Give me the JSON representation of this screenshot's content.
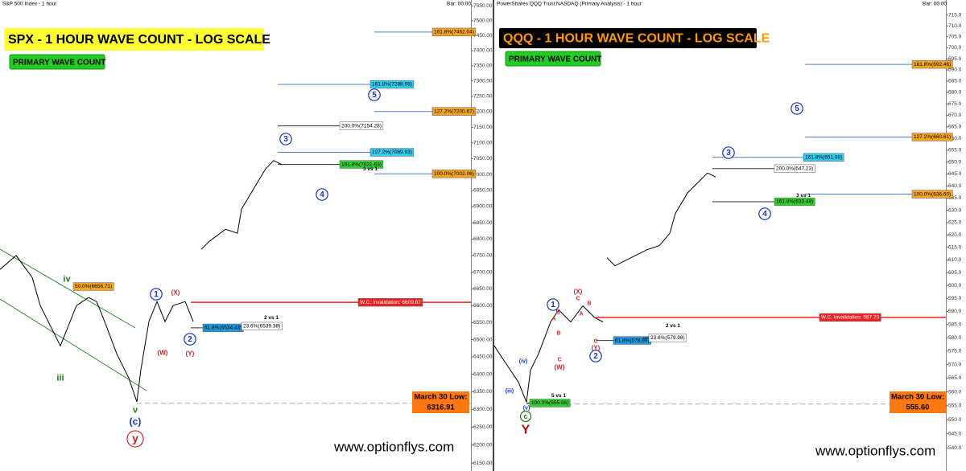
{
  "chart_data": [
    {
      "type": "line",
      "log_scale": true,
      "header": "S&P 500 Index - 1 hour",
      "bar_info": "Bar: 00:00",
      "title": "SPX - 1  HOUR WAVE COUNT - LOG SCALE",
      "subtitle": "PRIMARY WAVE COUNT",
      "watermark": "www.optionflys.com",
      "title_color": "#000000",
      "title_background": "#ffff33",
      "color": "#000000",
      "xlim": [
        0,
        585
      ],
      "ylim": [
        6128,
        7570
      ],
      "x": [
        0,
        20,
        40,
        50,
        75,
        95,
        110,
        120,
        130,
        145,
        160,
        170,
        175,
        185,
        195,
        205,
        215,
        230,
        240,
        245,
        250,
        260,
        280,
        295,
        300,
        315,
        330,
        340,
        350
      ],
      "values": [
        6708,
        6750,
        6684,
        6600,
        6482,
        6600,
        6624,
        6612,
        6553,
        6459,
        6389,
        6321,
        6413,
        6553,
        6612,
        6553,
        6600,
        6612,
        6553,
        null,
        6769,
        6793,
        6830,
        6818,
        6892,
        6955,
        7018,
        7044,
        7031
      ],
      "yticks": [
        {
          "value": 6150,
          "label": "6150.00"
        },
        {
          "value": 6200,
          "label": "6200.00"
        },
        {
          "value": 6250,
          "label": "6250.00"
        },
        {
          "value": 6300,
          "label": "6300.00"
        },
        {
          "value": 6350,
          "label": "6350.00"
        },
        {
          "value": 6400,
          "label": "6400.00"
        },
        {
          "value": 6450,
          "label": "6450.00"
        },
        {
          "value": 6500,
          "label": "6500.00"
        },
        {
          "value": 6550,
          "label": "6550.00"
        },
        {
          "value": 6600,
          "label": "6600.00"
        },
        {
          "value": 6650,
          "label": "6650.00"
        },
        {
          "value": 6700,
          "label": "6700.00"
        },
        {
          "value": 6750,
          "label": "6750.00"
        },
        {
          "value": 6800,
          "label": "6800.00"
        },
        {
          "value": 6850,
          "label": "6850.00"
        },
        {
          "value": 6900,
          "label": "6900.00"
        },
        {
          "value": 6950,
          "label": "6950.00"
        },
        {
          "value": 7000,
          "label": "7000.00"
        },
        {
          "value": 7050,
          "label": "7050.00"
        },
        {
          "value": 7100,
          "label": "7100.00"
        },
        {
          "value": 7150,
          "label": "7150.00"
        },
        {
          "value": 7200,
          "label": "7200.00"
        },
        {
          "value": 7250,
          "label": "7250.00"
        },
        {
          "value": 7300,
          "label": "7300.00"
        },
        {
          "value": 7350,
          "label": "7350.00"
        },
        {
          "value": 7400,
          "label": "7400.00"
        },
        {
          "value": 7450,
          "label": "7450.00"
        },
        {
          "value": 7500,
          "label": "7500.00"
        },
        {
          "value": 7550,
          "label": "7550.00"
        }
      ],
      "levels": [
        {
          "label": "161.8%(7462.04)",
          "value": 7462.04,
          "color": "#f5a623",
          "line_color": "#4a7fd4"
        },
        {
          "label": "161.8%(7288.68)",
          "value": 7288.68,
          "color": "#33ccee",
          "line_color": "#4a7fd4"
        },
        {
          "label": "127.2%(7200.67)",
          "value": 7200.67,
          "color": "#f5a623",
          "line_color": "#4a7fd4"
        },
        {
          "label": "200.0%(7154.28)",
          "value": 7154.28,
          "color": "#ffffff",
          "line_color": "#333333"
        },
        {
          "label": "127.2%(7069.93)",
          "value": 7069.93,
          "color": "#33ccee",
          "line_color": "#4a7fd4"
        },
        {
          "label": "161.8%(7031.63)",
          "value": 7031.63,
          "color": "#33cc33",
          "line_color": "#333333"
        },
        {
          "label": "100.0%(7002.06)",
          "value": 7002.06,
          "color": "#f5a623",
          "line_color": "#4a7fd4"
        },
        {
          "label": "W.C. Invalidation: 6609.67",
          "value": 6609.67,
          "color": "#ee2222",
          "line_color": "#ee2222"
        },
        {
          "label": "61.8%(6534.43)",
          "value": 6534.43,
          "color": "#2299dd",
          "line_color": "#333333"
        },
        {
          "label": "23.6%(6539.38)",
          "value": 6539.38,
          "color": "#ffffff",
          "line_color": "#333333"
        },
        {
          "label": "50.0%(6656.71)",
          "value": 6656.71,
          "color": "#f5a623",
          "line_color": "#333333"
        }
      ],
      "low": {
        "label": "March 30 Low:",
        "value": 6316.91
      },
      "annotations": [
        {
          "text": "iv",
          "color": "#1a7a1a"
        },
        {
          "text": "iii",
          "color": "#1a7a1a"
        },
        {
          "text": "v",
          "color": "#1a7a1a"
        },
        {
          "text": "(c)",
          "color": "#1133cc"
        },
        {
          "text": "y",
          "color": "#cc2222",
          "circled": true
        },
        {
          "text": "1",
          "color": "#1133cc",
          "circled": true
        },
        {
          "text": "(X)",
          "color": "#cc2222"
        },
        {
          "text": "(W)",
          "color": "#cc2222"
        },
        {
          "text": "(Y)",
          "color": "#cc2222"
        },
        {
          "text": "2",
          "color": "#1133cc",
          "circled": true
        },
        {
          "text": "3",
          "color": "#1133cc",
          "circled": true
        },
        {
          "text": "4",
          "color": "#1133cc",
          "circled": true
        },
        {
          "text": "5",
          "color": "#1133cc",
          "circled": true
        },
        {
          "text": "3 vs 1",
          "color": "#000000"
        },
        {
          "text": "2 vs 1",
          "color": "#000000"
        }
      ]
    },
    {
      "type": "line",
      "log_scale": true,
      "header": "PowerShares QQQ Trust:NASDAQ (Primary Analysis) - 1 hour",
      "bar_info": "Bar: 00:00",
      "title": "QQQ - 1 HOUR WAVE COUNT - LOG SCALE",
      "subtitle": "PRIMARY WAVE COUNT",
      "watermark": "www.optionflys.com",
      "title_color": "#ff9900",
      "title_background": "#000000",
      "color": "#000000",
      "xlim": [
        0,
        561
      ],
      "ylim": [
        532,
        722
      ],
      "x": [
        0,
        10,
        20,
        30,
        40,
        45,
        55,
        70,
        80,
        95,
        110,
        125,
        135,
        138,
        140,
        150,
        170,
        190,
        205,
        218,
        225,
        240,
        255,
        265,
        275
      ],
      "values": [
        577.0,
        572.4,
        568.0,
        563.6,
        556.3,
        568.0,
        574.0,
        586.0,
        590.6,
        586.0,
        592.1,
        587.6,
        586.0,
        null,
        610.9,
        607.7,
        610.9,
        614.1,
        615.7,
        620.6,
        628.7,
        637.1,
        642.1,
        645.4,
        643.7
      ],
      "yticks": [
        {
          "value": 540,
          "label": "540.0"
        },
        {
          "value": 545,
          "label": "545.0"
        },
        {
          "value": 550,
          "label": "550.0"
        },
        {
          "value": 555,
          "label": "555.0"
        },
        {
          "value": 560,
          "label": "560.0"
        },
        {
          "value": 565,
          "label": "565.0"
        },
        {
          "value": 570,
          "label": "570.0"
        },
        {
          "value": 575,
          "label": "575.0"
        },
        {
          "value": 580,
          "label": "580.0"
        },
        {
          "value": 585,
          "label": "585.0"
        },
        {
          "value": 590,
          "label": "590.0"
        },
        {
          "value": 595,
          "label": "595.0"
        },
        {
          "value": 600,
          "label": "600.0"
        },
        {
          "value": 605,
          "label": "605.0"
        },
        {
          "value": 610,
          "label": "610.0"
        },
        {
          "value": 615,
          "label": "615.0"
        },
        {
          "value": 620,
          "label": "620.0"
        },
        {
          "value": 625,
          "label": "625.0"
        },
        {
          "value": 630,
          "label": "630.0"
        },
        {
          "value": 635,
          "label": "635.0"
        },
        {
          "value": 640,
          "label": "640.0"
        },
        {
          "value": 645,
          "label": "645.0"
        },
        {
          "value": 650,
          "label": "650.0"
        },
        {
          "value": 655,
          "label": "655.0"
        },
        {
          "value": 660,
          "label": "660.0"
        },
        {
          "value": 665,
          "label": "665.0"
        },
        {
          "value": 670,
          "label": "670.0"
        },
        {
          "value": 675,
          "label": "675.0"
        },
        {
          "value": 680,
          "label": "680.0"
        },
        {
          "value": 685,
          "label": "685.0"
        },
        {
          "value": 690,
          "label": "690.0"
        },
        {
          "value": 695,
          "label": "695.0"
        },
        {
          "value": 700,
          "label": "700.0"
        },
        {
          "value": 705,
          "label": "705.0"
        },
        {
          "value": 710,
          "label": "710.0"
        },
        {
          "value": 715,
          "label": "715.0"
        }
      ],
      "levels": [
        {
          "label": "161.8%(692.46)",
          "value": 692.46,
          "color": "#f5a623",
          "line_color": "#4a7fd4"
        },
        {
          "label": "127.2%(660.61)",
          "value": 660.61,
          "color": "#f5a623",
          "line_color": "#4a7fd4"
        },
        {
          "label": "161.8%(651.98)",
          "value": 651.98,
          "color": "#33ccee",
          "line_color": "#4a7fd4"
        },
        {
          "label": "200.0%(647.23)",
          "value": 647.23,
          "color": "#ffffff",
          "line_color": "#333333"
        },
        {
          "label": "161.8%(633.48)",
          "value": 633.48,
          "color": "#33cc33",
          "line_color": "#333333"
        },
        {
          "label": "100.0%(636.60)",
          "value": 636.6,
          "color": "#f5a623",
          "line_color": "#4a7fd4"
        },
        {
          "label": "W.C. Invalidation: 587.70",
          "value": 587.7,
          "color": "#ee2222",
          "line_color": "#ee2222"
        },
        {
          "label": "61.8%(578.99)",
          "value": 578.99,
          "color": "#2299dd",
          "line_color": "#333333"
        },
        {
          "label": "23.6%(579.98)",
          "value": 579.98,
          "color": "#ffffff",
          "line_color": "#333333"
        },
        {
          "label": "100.0%(555.96)",
          "value": 555.96,
          "color": "#33cc33",
          "line_color": "#333333"
        }
      ],
      "low": {
        "label": "March 30 Low:",
        "value": 555.6,
        "value_label": "555.60"
      },
      "annotations": [
        {
          "text": "(iv)",
          "color": "#1133cc"
        },
        {
          "text": "(iii)",
          "color": "#1133cc"
        },
        {
          "text": "(v)",
          "color": "#1133cc"
        },
        {
          "text": "c",
          "color": "#1a7a1a",
          "circled": true
        },
        {
          "text": "Y",
          "color": "#aa1111"
        },
        {
          "text": "1",
          "color": "#1133cc",
          "circled": true
        },
        {
          "text": "B",
          "color": "#cc2222"
        },
        {
          "text": "A",
          "color": "#cc2222"
        },
        {
          "text": "B",
          "color": "#cc2222"
        },
        {
          "text": "C",
          "color": "#cc2222"
        },
        {
          "text": "(W)",
          "color": "#cc2222"
        },
        {
          "text": "(X)",
          "color": "#cc2222"
        },
        {
          "text": "C",
          "color": "#cc2222"
        },
        {
          "text": "A",
          "color": "#cc2222"
        },
        {
          "text": "B",
          "color": "#cc2222"
        },
        {
          "text": "C",
          "color": "#cc2222"
        },
        {
          "text": "(Y)",
          "color": "#cc2222"
        },
        {
          "text": "2",
          "color": "#1133cc",
          "circled": true
        },
        {
          "text": "3",
          "color": "#1133cc",
          "circled": true
        },
        {
          "text": "4",
          "color": "#1133cc",
          "circled": true
        },
        {
          "text": "5",
          "color": "#1133cc",
          "circled": true
        },
        {
          "text": "3 vs 1",
          "color": "#000000"
        },
        {
          "text": "2 vs 1",
          "color": "#000000"
        },
        {
          "text": "5 vs 1",
          "color": "#000000"
        }
      ]
    }
  ]
}
